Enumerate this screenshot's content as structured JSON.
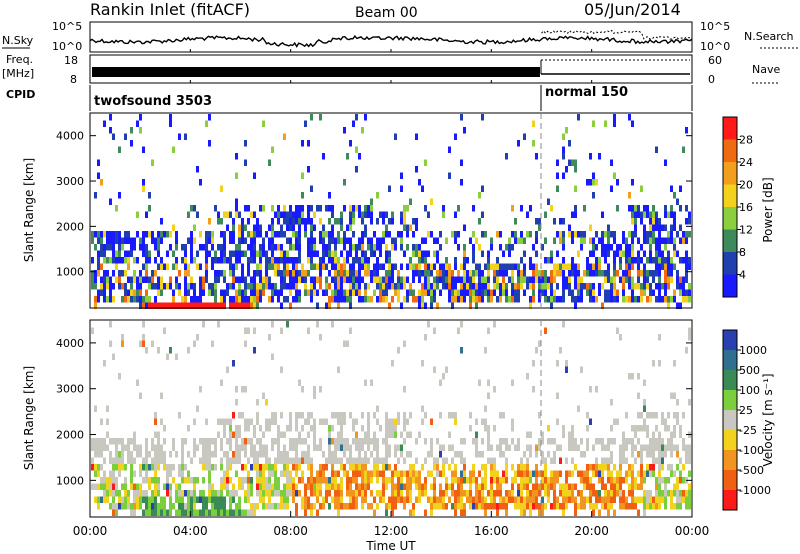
{
  "header": {
    "title": "Rankin Inlet (fitACF)",
    "beam": "Beam 00",
    "date": "05/Jun/2014"
  },
  "top_panels": {
    "nsky": {
      "label": "N.Sky",
      "left_ticks": [
        "10^5",
        "10^0"
      ],
      "right_ticks": [
        "10^5",
        "10^0"
      ],
      "right_label": "N.Search"
    },
    "freq": {
      "label_line1": "Freq.",
      "label_line2": "[MHz]",
      "left_ticks": [
        "18",
        "8"
      ],
      "right_ticks": [
        "60",
        "0"
      ],
      "right_label": "Nave"
    },
    "cpid": {
      "label": "CPID",
      "segments": [
        "twofsound 3503",
        "normal 150"
      ]
    }
  },
  "chart_data": [
    {
      "type": "heatmap",
      "name": "power-panel",
      "xlabel": "",
      "ylabel": "Slant Range [km]",
      "yticks": [
        "1000",
        "2000",
        "3000",
        "4000"
      ],
      "ylim": [
        200,
        4500
      ],
      "xlim_hours": [
        0,
        24
      ],
      "colorbar": {
        "label": "Power [dB]",
        "ticks": [
          "4",
          "8",
          "12",
          "16",
          "20",
          "24",
          "28"
        ],
        "colors": [
          "#1a1aff",
          "#2040b0",
          "#3e8a5a",
          "#8ccf3e",
          "#f2d21c",
          "#f2a01c",
          "#f06a10",
          "#ff1a1a"
        ]
      }
    },
    {
      "type": "heatmap",
      "name": "velocity-panel",
      "xlabel": "Time UT",
      "ylabel": "Slant Range [km]",
      "yticks": [
        "1000",
        "2000",
        "3000",
        "4000"
      ],
      "ylim": [
        200,
        4500
      ],
      "xlim_hours": [
        0,
        24
      ],
      "xticks": [
        "00:00",
        "04:00",
        "08:00",
        "12:00",
        "16:00",
        "20:00",
        "00:00"
      ],
      "colorbar": {
        "label": "Velocity [m s⁻¹]",
        "ticks": [
          "1000",
          "500",
          "100",
          "25",
          "-25",
          "-100",
          "-500",
          "-1000"
        ],
        "colors": [
          "#2a3fb0",
          "#2f6f8f",
          "#3a8a55",
          "#7ccf3c",
          "#c8c8c0",
          "#f2d21c",
          "#f29420",
          "#f06010",
          "#ff1a1a"
        ]
      }
    }
  ]
}
